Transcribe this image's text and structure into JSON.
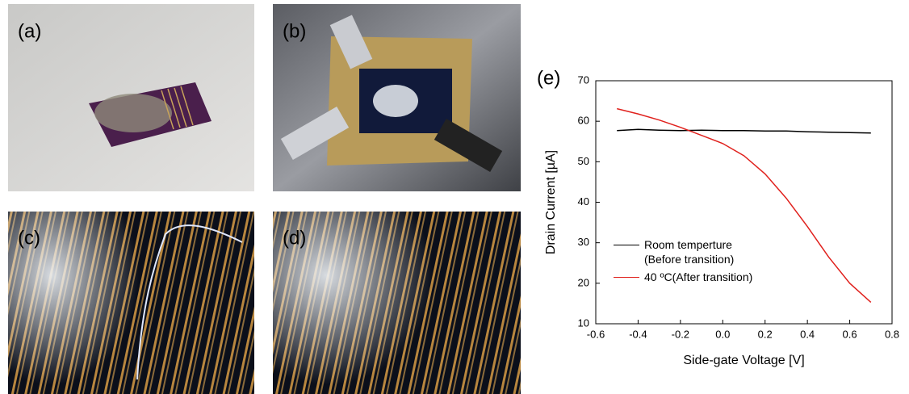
{
  "panels": [
    "(a)",
    "(b)",
    "(c)",
    "(d)",
    "(e)"
  ],
  "chart_data": {
    "type": "line",
    "x_label": "Side-gate Voltage [V]",
    "y_label": "Drain Current [µA]",
    "x": [
      -0.5,
      -0.4,
      -0.3,
      -0.2,
      -0.1,
      0,
      0.1,
      0.2,
      0.3,
      0.4,
      0.5,
      0.6,
      0.7
    ],
    "series": [
      {
        "name": "Room temperture (Before transition)",
        "color": "#000000",
        "values": [
          57.7,
          58.0,
          57.8,
          57.7,
          57.8,
          57.7,
          57.7,
          57.6,
          57.6,
          57.4,
          57.3,
          57.2,
          57.1
        ]
      },
      {
        "name": "40 ºC(After transition)",
        "color": "#e0211d",
        "values": [
          63.1,
          61.8,
          60.3,
          58.5,
          56.5,
          54.5,
          51.5,
          47.0,
          41.0,
          34.0,
          26.5,
          20.0,
          15.3
        ]
      }
    ],
    "xlim": [
      -0.6,
      0.8
    ],
    "xticks": [
      -0.6,
      -0.4,
      -0.2,
      {
        "value": 0,
        "label": "0.0"
      },
      0.2,
      0.4,
      0.6,
      0.8
    ],
    "ylim": [
      10,
      70
    ],
    "yticks": [
      10,
      20,
      30,
      40,
      50,
      60,
      70
    ],
    "grid": false
  }
}
